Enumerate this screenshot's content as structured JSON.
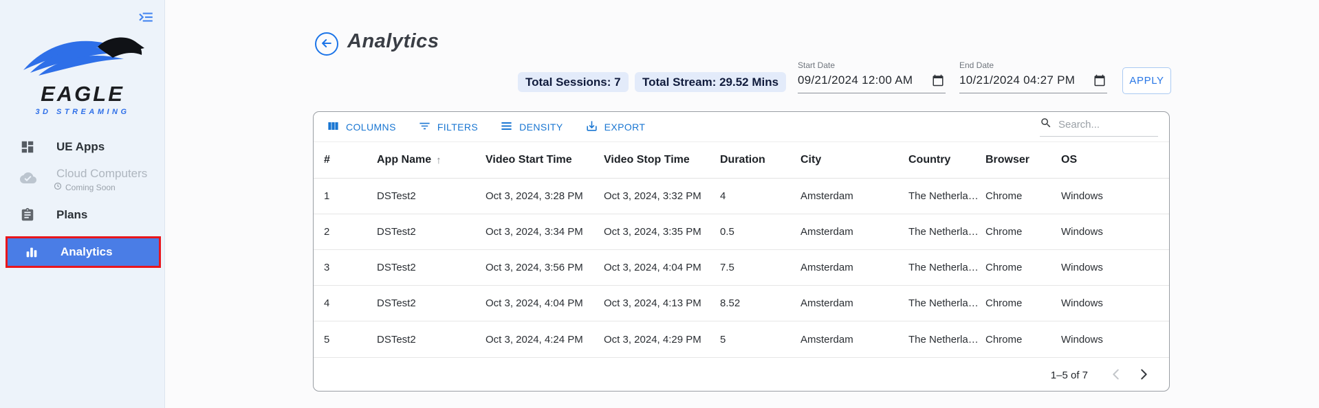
{
  "sidebar": {
    "logo": {
      "title": "EAGLE",
      "subtitle": "3D STREAMING"
    },
    "items": [
      {
        "label": "UE Apps",
        "icon": "dashboard-icon",
        "state": "normal"
      },
      {
        "label": "Cloud Computers",
        "sub_label": "Coming Soon",
        "icon": "cloud-done-icon",
        "state": "disabled"
      },
      {
        "label": "Plans",
        "icon": "clipboard-icon",
        "state": "normal"
      },
      {
        "label": "Analytics",
        "icon": "bar-chart-icon",
        "state": "selected"
      }
    ]
  },
  "header": {
    "title": "Analytics",
    "total_sessions": "Total Sessions: 7",
    "total_stream": "Total Stream: 29.52 Mins",
    "start_date": {
      "label": "Start Date",
      "value": "09/21/2024 12:00 AM"
    },
    "end_date": {
      "label": "End Date",
      "value": "10/21/2024 04:27 PM"
    },
    "apply_label": "APPLY"
  },
  "table": {
    "toolbar": {
      "columns": "COLUMNS",
      "filters": "FILTERS",
      "density": "DENSITY",
      "export": "EXPORT",
      "search_placeholder": "Search..."
    },
    "columns": [
      "#",
      "App Name",
      "Video Start Time",
      "Video Stop Time",
      "Duration",
      "City",
      "Country",
      "Browser",
      "OS"
    ],
    "sort": {
      "column": "App Name",
      "direction": "asc",
      "arrow": "↑"
    },
    "rows": [
      [
        "1",
        "DSTest2",
        "Oct 3, 2024, 3:28 PM",
        "Oct 3, 2024, 3:32 PM",
        "4",
        "Amsterdam",
        "The Netherlan...",
        "Chrome",
        "Windows"
      ],
      [
        "2",
        "DSTest2",
        "Oct 3, 2024, 3:34 PM",
        "Oct 3, 2024, 3:35 PM",
        "0.5",
        "Amsterdam",
        "The Netherlan...",
        "Chrome",
        "Windows"
      ],
      [
        "3",
        "DSTest2",
        "Oct 3, 2024, 3:56 PM",
        "Oct 3, 2024, 4:04 PM",
        "7.5",
        "Amsterdam",
        "The Netherlan...",
        "Chrome",
        "Windows"
      ],
      [
        "4",
        "DSTest2",
        "Oct 3, 2024, 4:04 PM",
        "Oct 3, 2024, 4:13 PM",
        "8.52",
        "Amsterdam",
        "The Netherlan...",
        "Chrome",
        "Windows"
      ],
      [
        "5",
        "DSTest2",
        "Oct 3, 2024, 4:24 PM",
        "Oct 3, 2024, 4:29 PM",
        "5",
        "Amsterdam",
        "The Netherlan...",
        "Chrome",
        "Windows"
      ]
    ],
    "pagination": {
      "range": "1–5 of 7"
    }
  },
  "colors": {
    "primary": "#1976d2",
    "selected_item_bg": "#4a7de6",
    "selected_item_border": "#e9151b",
    "badge_bg": "#e3ebfa",
    "logo_blue": "#2e6fe8",
    "sidebar_bg": "#edf3fa"
  }
}
